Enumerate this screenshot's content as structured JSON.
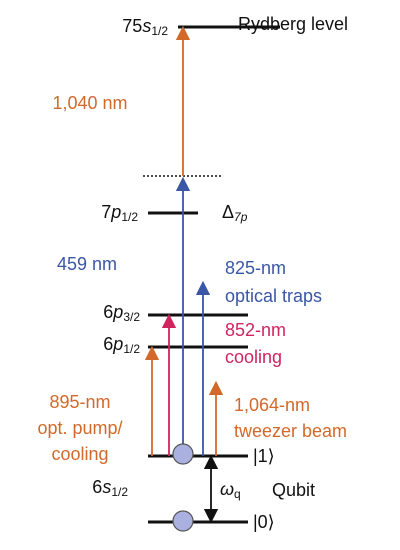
{
  "levels": {
    "rydberg": {
      "number": "75",
      "orbital": "s",
      "sub": "1/2",
      "name": "Rydberg level"
    },
    "p7": {
      "number": "7",
      "orbital": "p",
      "sub": "1/2",
      "detuning": "Δ",
      "detuning_sub": "7p"
    },
    "p3": {
      "number": "6",
      "orbital": "p",
      "sub": "3/2"
    },
    "p1": {
      "number": "6",
      "orbital": "p",
      "sub": "1/2"
    },
    "s": {
      "number": "6",
      "orbital": "s",
      "sub": "1/2"
    },
    "one": "|1⟩",
    "zero": "|0⟩"
  },
  "beams": {
    "rydberg": "1,040 nm",
    "blue": "459 nm",
    "traps": [
      "825-nm",
      "optical traps"
    ],
    "cooling": [
      "852-nm",
      "cooling"
    ],
    "pump": [
      "895-nm",
      "opt. pump/",
      "cooling"
    ],
    "tweezer": [
      "1,064-nm",
      "tweezer beam"
    ]
  },
  "qubit": {
    "omega": "ω",
    "omega_sub": "q",
    "label": "Qubit"
  }
}
